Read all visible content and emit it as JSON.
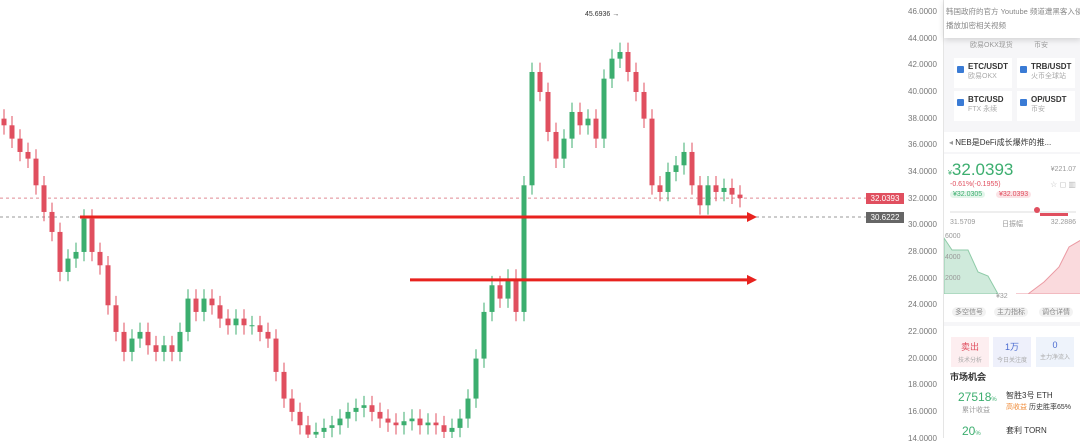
{
  "chart_data": {
    "type": "candlestick",
    "yticks": [
      "46.0000",
      "44.0000",
      "42.0000",
      "40.0000",
      "38.0000",
      "36.0000",
      "34.0000",
      "32.0000",
      "30.0000",
      "28.0000",
      "26.0000",
      "24.0000",
      "22.0000",
      "20.0000",
      "18.0000",
      "16.0000",
      "14.0000"
    ],
    "ylim": [
      14,
      46
    ],
    "closes": [
      37.5,
      36.5,
      35.5,
      35,
      33,
      31,
      29.5,
      26.5,
      27.5,
      28,
      30.5,
      28,
      27,
      24,
      22,
      20.5,
      21.5,
      22,
      21,
      20.5,
      21,
      20.5,
      22,
      24.5,
      23.5,
      24.5,
      24,
      23,
      22.5,
      23,
      22.5,
      22.5,
      22,
      21.5,
      19,
      17,
      16,
      15,
      14.3,
      14.5,
      14.8,
      15,
      15.5,
      16,
      16.3,
      16.5,
      16,
      15.5,
      15.2,
      15,
      15.3,
      15.5,
      15,
      15.2,
      15,
      14.5,
      14.8,
      15.5,
      17,
      20,
      23.5,
      25.5,
      24.5,
      26,
      23.5,
      33,
      41.5,
      40,
      37,
      35,
      36.5,
      38.5,
      37.5,
      38,
      36.5,
      41,
      42.5,
      43,
      41.5,
      40,
      38,
      33,
      32.5,
      34,
      34.5,
      35.5,
      33,
      31.5,
      33,
      32.5,
      32.8,
      32.3,
      32.04
    ],
    "high_annotation": "45.6936",
    "last_price_tag": "32.0393",
    "crosshair_tag": "30.6222",
    "up_color": "#3cae6f",
    "down_color": "#e04f5f",
    "annotation_arrows": [
      {
        "price": 30.6222
      },
      {
        "price": 25.9
      }
    ]
  },
  "panel": {
    "tip_lines": [
      "韩国政府的官方 Youtube 频道遭黑客入侵",
      "播放加密相关视频"
    ],
    "hidden_row": [
      "欧易OKX现货",
      "币安"
    ],
    "pairs": [
      {
        "name": "ETC/USDT",
        "ex": "欧易OKX"
      },
      {
        "name": "TRB/USDT",
        "ex": "火币全球站"
      },
      {
        "name": "BTC/USD",
        "ex": "FTX 永续"
      },
      {
        "name": "OP/USDT",
        "ex": "币安"
      }
    ],
    "news": "NEB是DeFi成长爆炸的推...",
    "price": "32.0393",
    "price_prefix": "¥",
    "cny": "¥221.07",
    "change": "-0.61%(-0.1955)",
    "bid": "¥32.0305",
    "ask": "¥32.0393",
    "low": "31.5709",
    "range_label": "日振幅",
    "high": "32.2886",
    "depth_labels": [
      "6000",
      "4000",
      "2000"
    ],
    "depth_price": "¥32",
    "buttons": [
      "多空信号",
      "主力指标",
      "调仓详情"
    ],
    "stats": [
      {
        "v": "卖出",
        "l": "技术分析"
      },
      {
        "v": "1万",
        "l": "今日关注度"
      },
      {
        "v": "0",
        "l": "主力净流入"
      }
    ],
    "market_title": "市场机会",
    "opps": [
      {
        "pct": "27518",
        "unit": "%",
        "sub": "累计收益",
        "name": "智胜3号 ETH",
        "tag": "高收益",
        "rate": "历史胜率65%"
      },
      {
        "pct": "20",
        "unit": "%",
        "name": "套利 TORN"
      }
    ]
  }
}
